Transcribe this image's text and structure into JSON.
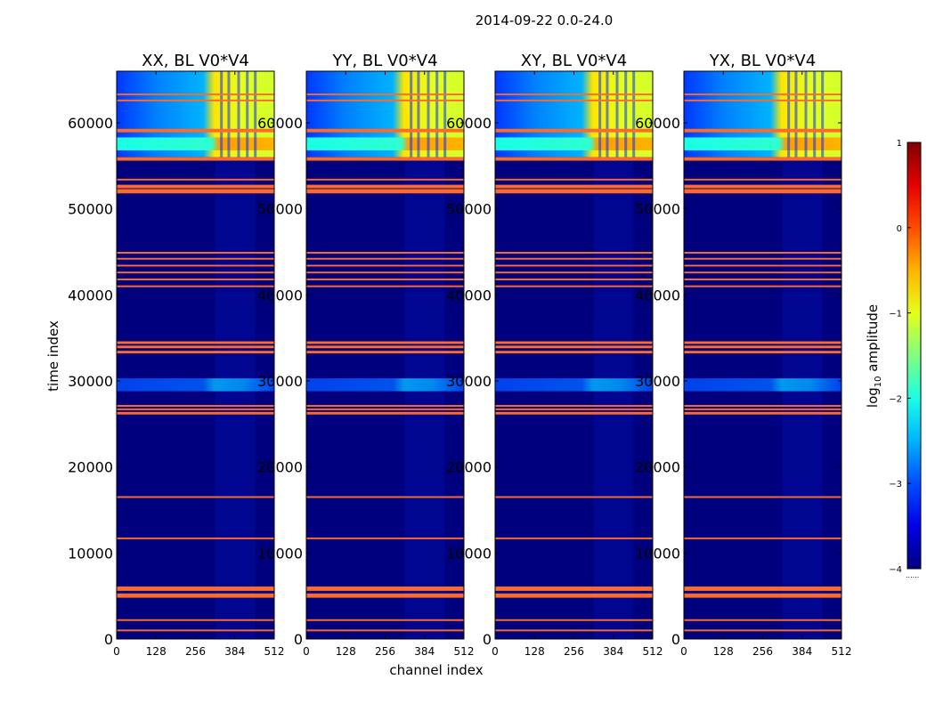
{
  "chart_data": {
    "type": "heatmap",
    "suptitle": "2014-09-22 0.0-24.0",
    "xlabel": "channel index",
    "ylabel": "time index",
    "x_ticks": [
      "0",
      "128",
      "256",
      "384",
      "512"
    ],
    "y_ticks": [
      "0",
      "10000",
      "20000",
      "30000",
      "40000",
      "50000",
      "60000"
    ],
    "xlim": [
      0,
      512
    ],
    "ylim": [
      0,
      66000
    ],
    "panels": [
      {
        "title": "XX, BL V0*V4"
      },
      {
        "title": "YY, BL V0*V4"
      },
      {
        "title": "XY, BL V0*V4"
      },
      {
        "title": "YX, BL V0*V4"
      }
    ],
    "colorbar": {
      "label_log": "log",
      "label_sub": "10",
      "label_rest": " amplitude",
      "range": [
        -4,
        1
      ],
      "ticks": [
        "−4",
        "−3",
        "−2",
        "−1",
        "0",
        "1"
      ],
      "extra_mark": "......"
    },
    "flagged_rows": [
      {
        "from": 900,
        "to": 1100
      },
      {
        "from": 2100,
        "to": 2300
      },
      {
        "from": 4800,
        "to": 5300
      },
      {
        "from": 5600,
        "to": 6100
      },
      {
        "from": 11600,
        "to": 11800
      },
      {
        "from": 16400,
        "to": 16600
      },
      {
        "from": 26100,
        "to": 26400
      },
      {
        "from": 26600,
        "to": 26800
      },
      {
        "from": 27000,
        "to": 27200
      },
      {
        "from": 33200,
        "to": 33500
      },
      {
        "from": 33800,
        "to": 34100
      },
      {
        "from": 34300,
        "to": 34600
      },
      {
        "from": 40900,
        "to": 41100
      },
      {
        "from": 41700,
        "to": 41900
      },
      {
        "from": 42500,
        "to": 42700
      },
      {
        "from": 43300,
        "to": 43500
      },
      {
        "from": 44100,
        "to": 44300
      },
      {
        "from": 44800,
        "to": 45000
      },
      {
        "from": 51800,
        "to": 52300
      },
      {
        "from": 52400,
        "to": 52800
      },
      {
        "from": 53300,
        "to": 53500
      },
      {
        "from": 55600,
        "to": 56000
      },
      {
        "from": 58900,
        "to": 59300
      },
      {
        "from": 62500,
        "to": 62700
      },
      {
        "from": 63200,
        "to": 63400
      }
    ],
    "flag_color": "#ff6a2a",
    "background_color": "#00007f"
  }
}
